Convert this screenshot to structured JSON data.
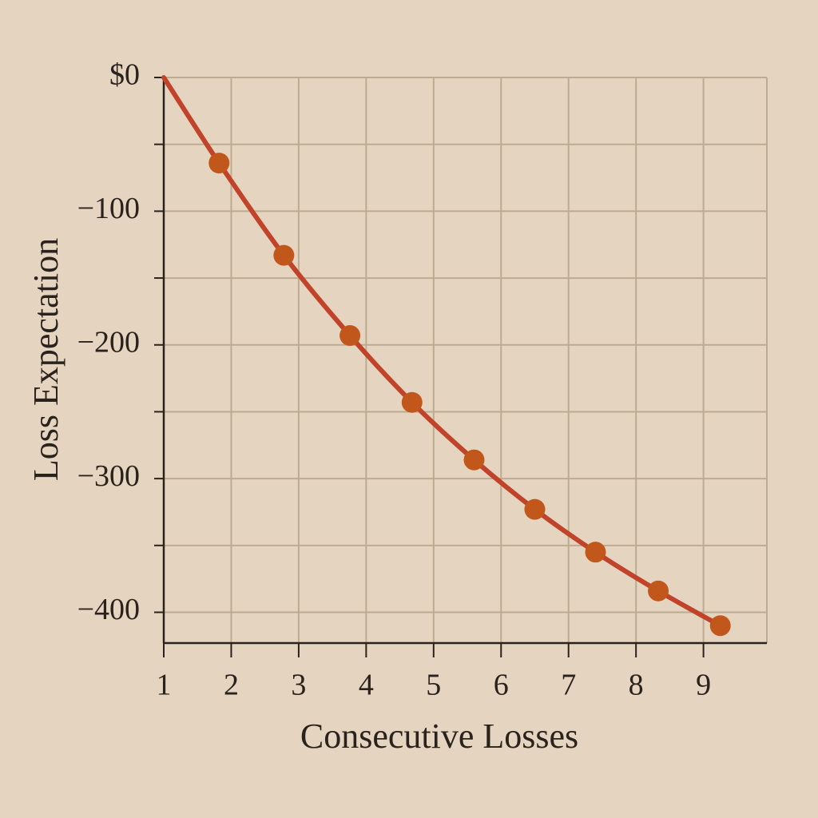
{
  "chart_data": {
    "type": "line",
    "x_label": "Consecutive Losses",
    "y_label": "Loss Expectation",
    "x": [
      1,
      1.82,
      2.78,
      3.76,
      4.68,
      5.6,
      6.5,
      7.4,
      8.33,
      9.25
    ],
    "values": [
      0,
      -64,
      -133,
      -193,
      -243,
      -286,
      -323,
      -355,
      -384,
      -410
    ],
    "marker_visible": [
      false,
      true,
      true,
      true,
      true,
      true,
      true,
      true,
      true,
      true
    ],
    "color": "#c0432a",
    "marker_color": "#c2571c",
    "xlim": [
      1,
      9.94
    ],
    "ylim": [
      -423,
      0
    ],
    "xticks": [
      1,
      2,
      3,
      4,
      5,
      6,
      7,
      8,
      9
    ],
    "yticks": [
      {
        "value": 0,
        "label": "$0"
      },
      {
        "value": -100,
        "label": "−100"
      },
      {
        "value": -200,
        "label": "−200"
      },
      {
        "value": -300,
        "label": "−300"
      },
      {
        "value": -400,
        "label": "−400"
      }
    ],
    "minor_yticks": [
      -50,
      -150,
      -250,
      -350
    ],
    "grid": true
  }
}
